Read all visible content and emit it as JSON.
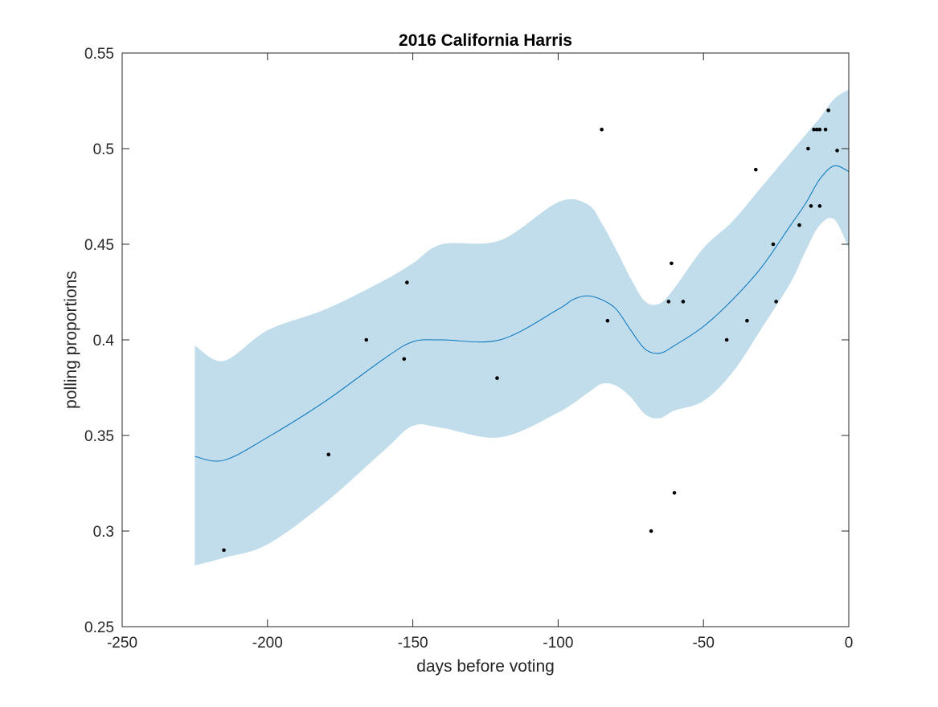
{
  "chart_data": {
    "type": "line",
    "title": "2016 California Harris",
    "xlabel": "days before voting",
    "ylabel": "polling proportions",
    "xlim": [
      -250,
      0
    ],
    "ylim": [
      0.25,
      0.55
    ],
    "xticks": [
      -250,
      -200,
      -150,
      -100,
      -50,
      0
    ],
    "yticks": [
      0.25,
      0.3,
      0.35,
      0.4,
      0.45,
      0.5,
      0.55
    ],
    "xtick_labels": [
      "-250",
      "-200",
      "-150",
      "-100",
      "-50",
      "0"
    ],
    "ytick_labels": [
      "0.25",
      "0.3",
      "0.35",
      "0.4",
      "0.45",
      "0.5",
      "0.55"
    ],
    "grid": false,
    "legend": "none",
    "band": {
      "x": [
        -225,
        -215,
        -200,
        -180,
        -160,
        -150,
        -140,
        -120,
        -100,
        -90,
        -85,
        -80,
        -75,
        -70,
        -65,
        -60,
        -50,
        -40,
        -30,
        -20,
        -15,
        -10,
        -5,
        0
      ],
      "upper": [
        0.397,
        0.389,
        0.405,
        0.416,
        0.431,
        0.44,
        0.45,
        0.452,
        0.472,
        0.471,
        0.461,
        0.447,
        0.432,
        0.42,
        0.419,
        0.427,
        0.448,
        0.462,
        0.48,
        0.498,
        0.507,
        0.516,
        0.526,
        0.531
      ],
      "lower": [
        0.282,
        0.286,
        0.293,
        0.315,
        0.342,
        0.355,
        0.354,
        0.349,
        0.362,
        0.372,
        0.377,
        0.376,
        0.37,
        0.361,
        0.359,
        0.363,
        0.368,
        0.383,
        0.406,
        0.43,
        0.446,
        0.46,
        0.463,
        0.448
      ]
    },
    "series": [
      {
        "x": [
          -225,
          -215,
          -200,
          -180,
          -160,
          -150,
          -140,
          -120,
          -100,
          -95,
          -90,
          -85,
          -80,
          -75,
          -70,
          -65,
          -60,
          -50,
          -40,
          -30,
          -20,
          -15,
          -10,
          -5,
          0
        ],
        "values": [
          0.339,
          0.337,
          0.349,
          0.368,
          0.39,
          0.399,
          0.4,
          0.4,
          0.416,
          0.421,
          0.423,
          0.421,
          0.416,
          0.405,
          0.395,
          0.393,
          0.397,
          0.407,
          0.421,
          0.438,
          0.46,
          0.471,
          0.484,
          0.491,
          0.488
        ]
      }
    ],
    "points": {
      "x": [
        -215,
        -179,
        -166,
        -153,
        -152,
        -121,
        -85,
        -83,
        -68,
        -62,
        -61,
        -60,
        -57,
        -42,
        -35,
        -32,
        -26,
        -25,
        -17,
        -14,
        -13,
        -12,
        -11,
        -10,
        -10,
        -8,
        -7,
        -4
      ],
      "y": [
        0.29,
        0.34,
        0.4,
        0.39,
        0.43,
        0.38,
        0.51,
        0.41,
        0.3,
        0.42,
        0.44,
        0.32,
        0.42,
        0.4,
        0.41,
        0.489,
        0.45,
        0.42,
        0.46,
        0.5,
        0.47,
        0.51,
        0.51,
        0.51,
        0.47,
        0.51,
        0.52,
        0.499
      ]
    },
    "colors": {
      "band": "#c1ddeb",
      "line": "#0072bd",
      "points": "#000000",
      "axes": "#262626"
    }
  }
}
